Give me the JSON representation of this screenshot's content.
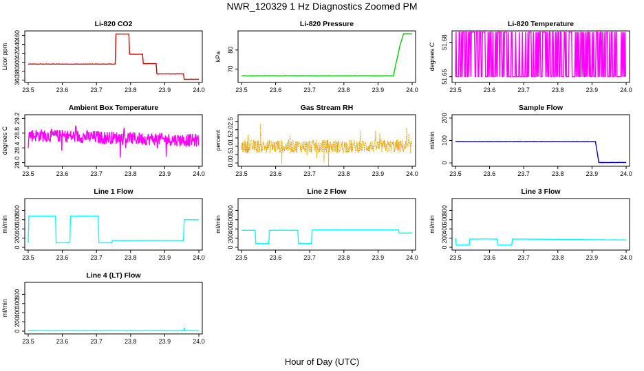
{
  "figure": {
    "title": "NWR_120329  1 Hz Diagnostics Zoomed PM",
    "xlabel": "Hour of Day (UTC)"
  },
  "chart_data": [
    {
      "type": "line",
      "title": "Li-820 CO2",
      "ylabel": "Licor ppm",
      "color": "#dd0000",
      "xlim": [
        23.49,
        24.01
      ],
      "ylim": [
        355,
        470
      ],
      "xticks": [
        "23.5",
        "23.6",
        "23.7",
        "23.8",
        "23.9",
        "24.0"
      ],
      "yticks": [
        360,
        380,
        400,
        420,
        440,
        460
      ],
      "x": [
        23.5,
        23.755,
        23.757,
        23.795,
        23.797,
        23.835,
        23.837,
        23.875,
        23.877,
        23.955,
        23.957,
        24.0
      ],
      "y": [
        396,
        396,
        463,
        463,
        418,
        418,
        397,
        397,
        374,
        374,
        362,
        362
      ]
    },
    {
      "type": "line",
      "title": "Li-820 Pressure",
      "ylabel": "kPa",
      "color": "#00cc00",
      "xlim": [
        23.49,
        24.01
      ],
      "ylim": [
        63,
        90
      ],
      "xticks": [
        "23.5",
        "23.6",
        "23.7",
        "23.8",
        "23.9",
        "24.0"
      ],
      "yticks": [
        70,
        80
      ],
      "x": [
        23.5,
        23.945,
        23.965,
        23.975,
        24.0
      ],
      "y": [
        66.5,
        66.5,
        83,
        88.5,
        88.5
      ]
    },
    {
      "type": "line",
      "title": "Li-820 Temperature",
      "ylabel": "degrees C",
      "color": "#ff00ff",
      "xlim": [
        23.49,
        24.01
      ],
      "ylim": [
        51.645,
        51.69
      ],
      "xticks": [
        "23.5",
        "23.6",
        "23.7",
        "23.8",
        "23.9",
        "24.0"
      ],
      "yticks": [
        "51.65",
        "51.68"
      ],
      "x": [
        23.5,
        24.0
      ],
      "y": [
        51.65,
        51.689
      ]
    },
    {
      "type": "line",
      "title": "Ambient Box Temperature",
      "ylabel": "degrees C",
      "color": "#ff00ff",
      "xlim": [
        23.49,
        24.01
      ],
      "ylim": [
        27.9,
        29.3
      ],
      "xticks": [
        "23.5",
        "23.6",
        "23.7",
        "23.8",
        "23.9",
        "24.0"
      ],
      "yticks": [
        "28.0",
        "28.4",
        "28.8",
        "29.2"
      ],
      "x": [
        23.5,
        24.0
      ],
      "y": [
        28.75,
        28.6
      ]
    },
    {
      "type": "line",
      "title": "Gas Stream RH",
      "ylabel": "percent",
      "color": "#e8a000",
      "xlim": [
        23.49,
        24.01
      ],
      "ylim": [
        -0.2,
        2.9
      ],
      "xticks": [
        "23.5",
        "23.6",
        "23.7",
        "23.8",
        "23.9",
        "24.0"
      ],
      "yticks": [
        "0.0",
        "0.5",
        "1.0",
        "1.5",
        "2.0",
        "2.5"
      ],
      "x": [
        23.5,
        24.0
      ],
      "y": [
        1.0,
        1.0
      ]
    },
    {
      "type": "line",
      "title": "Sample Flow",
      "ylabel": "ml/min",
      "color": "#0000cc",
      "xlim": [
        23.49,
        24.01
      ],
      "ylim": [
        -15,
        215
      ],
      "xticks": [
        "23.5",
        "23.6",
        "23.7",
        "23.8",
        "23.9",
        "24.0"
      ],
      "yticks": [
        0,
        100,
        200
      ],
      "x": [
        23.5,
        23.91,
        23.92,
        24.0
      ],
      "y": [
        95,
        95,
        2,
        2
      ]
    },
    {
      "type": "line",
      "title": "Line 1 Flow",
      "ylabel": "ml/min",
      "color": "#00ffff",
      "xlim": [
        23.49,
        24.01
      ],
      "ylim": [
        -60,
        1060
      ],
      "xticks": [
        "23.5",
        "23.6",
        "23.7",
        "23.8",
        "23.9",
        "24.0"
      ],
      "yticks": [
        0,
        200,
        400,
        600,
        800
      ],
      "x": [
        23.5,
        23.502,
        23.58,
        23.582,
        23.622,
        23.624,
        23.705,
        23.707,
        23.745,
        23.747,
        23.955,
        23.957,
        24.0
      ],
      "y": [
        100,
        680,
        680,
        100,
        100,
        680,
        680,
        100,
        100,
        150,
        150,
        600,
        600
      ]
    },
    {
      "type": "line",
      "title": "Line 2 Flow",
      "ylabel": "ml/min",
      "color": "#00ffff",
      "xlim": [
        23.49,
        24.01
      ],
      "ylim": [
        -60,
        1060
      ],
      "xticks": [
        "23.5",
        "23.6",
        "23.7",
        "23.8",
        "23.9",
        "24.0"
      ],
      "yticks": [
        0,
        200,
        400,
        600,
        800
      ],
      "x": [
        23.5,
        23.54,
        23.542,
        23.58,
        23.582,
        23.665,
        23.667,
        23.705,
        23.707,
        23.96,
        23.962,
        24.0
      ],
      "y": [
        370,
        370,
        80,
        80,
        370,
        370,
        80,
        80,
        380,
        380,
        310,
        310
      ]
    },
    {
      "type": "line",
      "title": "Line 3 Flow",
      "ylabel": "ml/min",
      "color": "#00ffff",
      "xlim": [
        23.49,
        24.01
      ],
      "ylim": [
        -60,
        1060
      ],
      "xticks": [
        "23.5",
        "23.6",
        "23.7",
        "23.8",
        "23.9",
        "24.0"
      ],
      "yticks": [
        0,
        200,
        400,
        600,
        800
      ],
      "x": [
        23.5,
        23.502,
        23.54,
        23.542,
        23.622,
        23.624,
        23.665,
        23.667,
        24.0
      ],
      "y": [
        200,
        50,
        50,
        180,
        180,
        50,
        50,
        180,
        160
      ]
    },
    {
      "type": "line",
      "title": "Line 4 (LT) Flow",
      "ylabel": "ml/min",
      "color": "#00ffff",
      "xlim": [
        23.49,
        24.01
      ],
      "ylim": [
        -60,
        1060
      ],
      "xticks": [
        "23.5",
        "23.6",
        "23.7",
        "23.8",
        "23.9",
        "24.0"
      ],
      "yticks": [
        0,
        200,
        400,
        600,
        800
      ],
      "x": [
        23.5,
        23.955,
        23.957,
        23.959,
        24.0
      ],
      "y": [
        10,
        10,
        70,
        10,
        10
      ]
    }
  ]
}
